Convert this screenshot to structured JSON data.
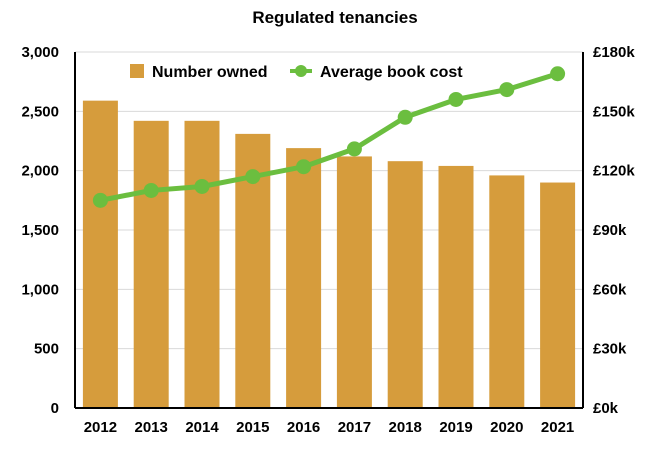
{
  "colors": {
    "bar": "#D69C3C",
    "line": "#6BBE3F",
    "axis": "#000000",
    "grid": "#d9d9d9"
  },
  "chart_data": {
    "type": "bar",
    "title": "Regulated tenancies",
    "categories": [
      "2012",
      "2013",
      "2014",
      "2015",
      "2016",
      "2017",
      "2018",
      "2019",
      "2020",
      "2021"
    ],
    "series": [
      {
        "name": "Number owned",
        "type": "bar",
        "axis": "left",
        "values": [
          2590,
          2420,
          2420,
          2310,
          2190,
          2120,
          2080,
          2040,
          1960,
          1900
        ]
      },
      {
        "name": "Average book cost",
        "type": "line",
        "axis": "right",
        "values": [
          105000,
          110000,
          112000,
          117000,
          122000,
          131000,
          147000,
          156000,
          161000,
          169000
        ]
      }
    ],
    "ylim_left": [
      0,
      3000
    ],
    "ylim_right": [
      0,
      180000
    ],
    "yticks_left": [
      "0",
      "500",
      "1,000",
      "1,500",
      "2,000",
      "2,500",
      "3,000"
    ],
    "yticks_right": [
      "£0k",
      "£30k",
      "£60k",
      "£90k",
      "£120k",
      "£150k",
      "£180k"
    ],
    "grid": true,
    "legend": "top-left"
  }
}
